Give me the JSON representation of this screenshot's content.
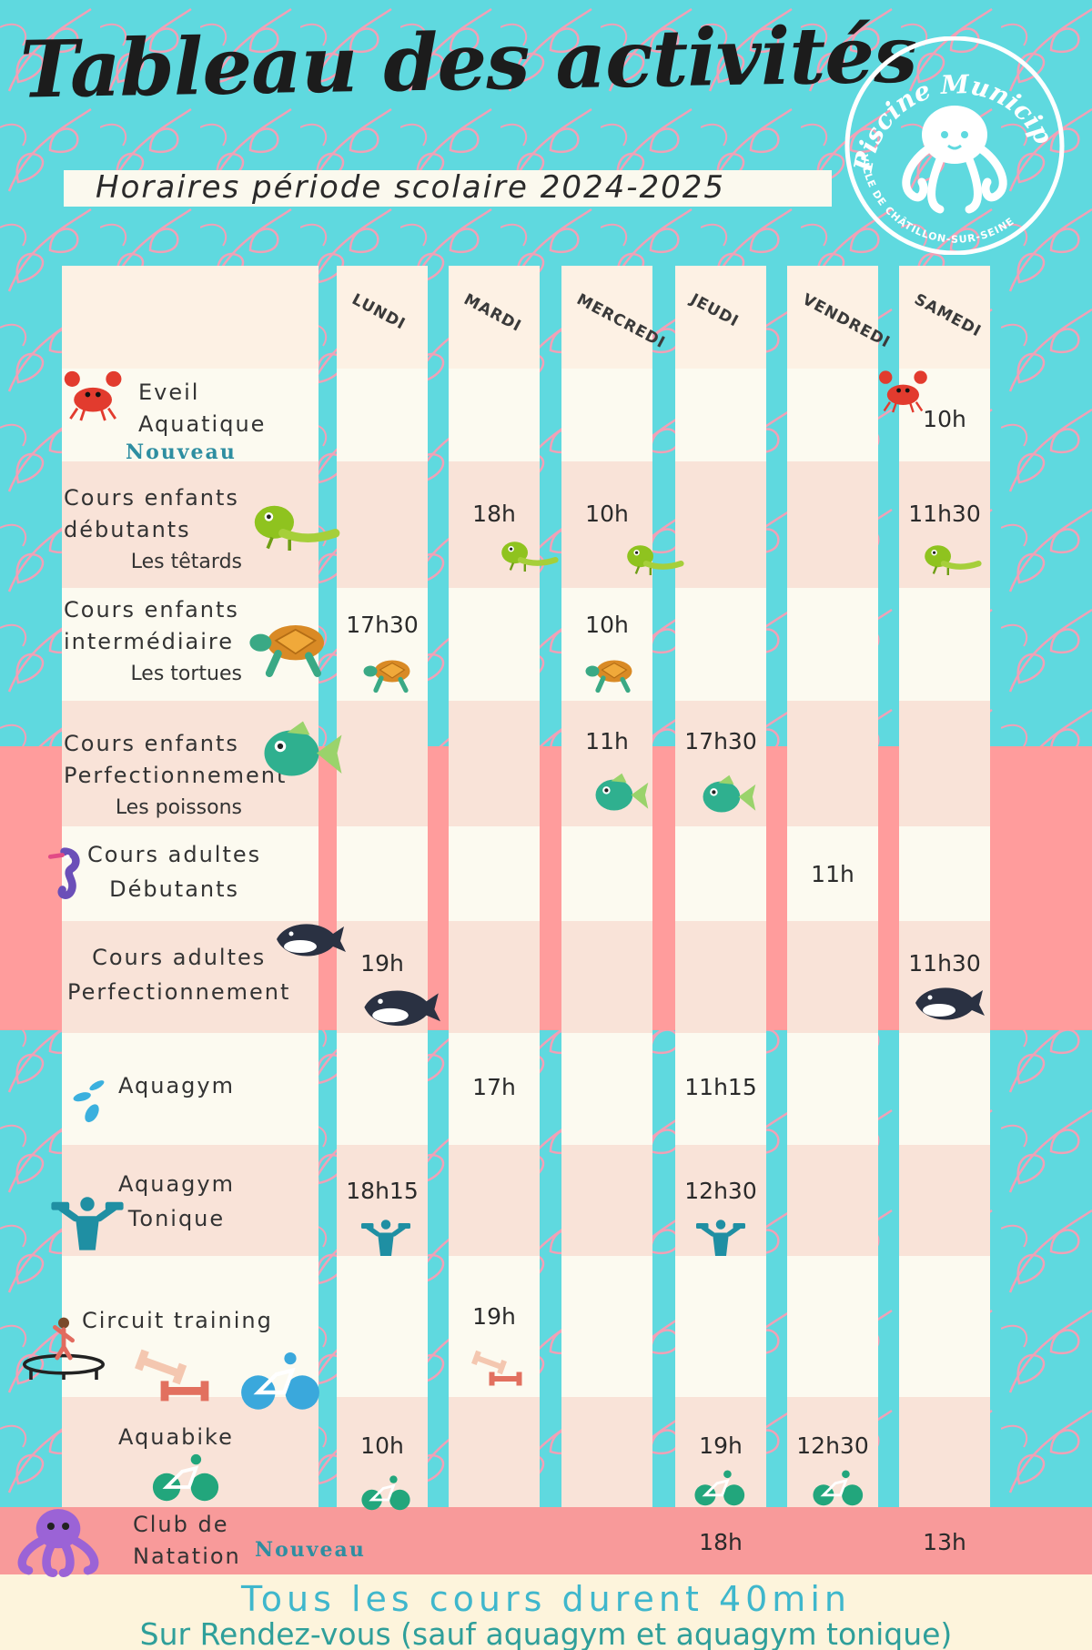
{
  "title": "Tableau des activités",
  "subtitle": "Horaires période scolaire 2024-2025",
  "logo": {
    "top_text": "Piscine Municipale",
    "bottom_text": "VILLE DE CHÂTILLON-SUR-SEINE",
    "icon": "octopus-icon"
  },
  "days": [
    "LUNDI",
    "MARDI",
    "MERCREDI",
    "JEUDI",
    "VENDREDI",
    "SAMEDI"
  ],
  "activities": [
    {
      "line1": "Eveil",
      "line2": "Aquatique",
      "sub": "",
      "nouveau": "Nouveau",
      "icon": "crab-icon",
      "times": [
        "",
        "",
        "",
        "",
        "",
        "10h"
      ]
    },
    {
      "line1": "Cours enfants",
      "line2": "débutants",
      "sub": "Les têtards",
      "icon": "lizard-icon",
      "times": [
        "",
        "18h",
        "10h",
        "",
        "",
        "11h30"
      ]
    },
    {
      "line1": "Cours enfants",
      "line2": "intermédiaire",
      "sub": "Les tortues",
      "icon": "turtle-icon",
      "times": [
        "17h30",
        "",
        "10h",
        "",
        "",
        ""
      ]
    },
    {
      "line1": "Cours enfants",
      "line2": "Perfectionnement",
      "sub": "Les poissons",
      "icon": "fish-icon",
      "times": [
        "",
        "",
        "11h",
        "17h30",
        "",
        ""
      ]
    },
    {
      "line1": "Cours adultes",
      "line2": "Débutants",
      "sub": "",
      "icon": "seahorse-icon",
      "times": [
        "",
        "",
        "",
        "",
        "11h",
        ""
      ]
    },
    {
      "line1": "Cours adultes",
      "line2": "Perfectionnement",
      "sub": "",
      "icon": "orca-icon",
      "times": [
        "19h",
        "",
        "",
        "",
        "",
        "11h30"
      ]
    },
    {
      "line1": "Aquagym",
      "line2": "",
      "sub": "",
      "icon": "water-splash-icon",
      "times": [
        "",
        "17h",
        "",
        "11h15",
        "",
        ""
      ]
    },
    {
      "line1": "Aquagym",
      "line2": "Tonique",
      "sub": "",
      "icon": "dumbbell-person-icon",
      "times": [
        "18h15",
        "",
        "",
        "12h30",
        "",
        ""
      ]
    },
    {
      "line1": "Circuit training",
      "line2": "",
      "sub": "",
      "icon": "trampoline-icon",
      "times": [
        "",
        "19h",
        "",
        "",
        "",
        ""
      ]
    },
    {
      "line1": "Aquabike",
      "line2": "",
      "sub": "",
      "icon": "bike-icon",
      "times": [
        "10h",
        "",
        "",
        "19h",
        "12h30",
        ""
      ]
    },
    {
      "line1": "Club de",
      "line2": "Natation",
      "sub": "",
      "nouveau": "Nouveau",
      "icon": "octopus-icon",
      "times": [
        "",
        "",
        "",
        "18h",
        "",
        "13h"
      ]
    }
  ],
  "footer": {
    "line1": "Tous les cours durent 40min",
    "line2": "Sur Rendez-vous (sauf aquagym et aquagym tonique)"
  },
  "colors": {
    "turquoise": "#5fd9df",
    "pink": "#ff9c9c",
    "cream": "#fcfaf0",
    "peach": "#f9e3d8",
    "teal_text": "#3fb7cc",
    "green_text": "#2f9f9a"
  }
}
